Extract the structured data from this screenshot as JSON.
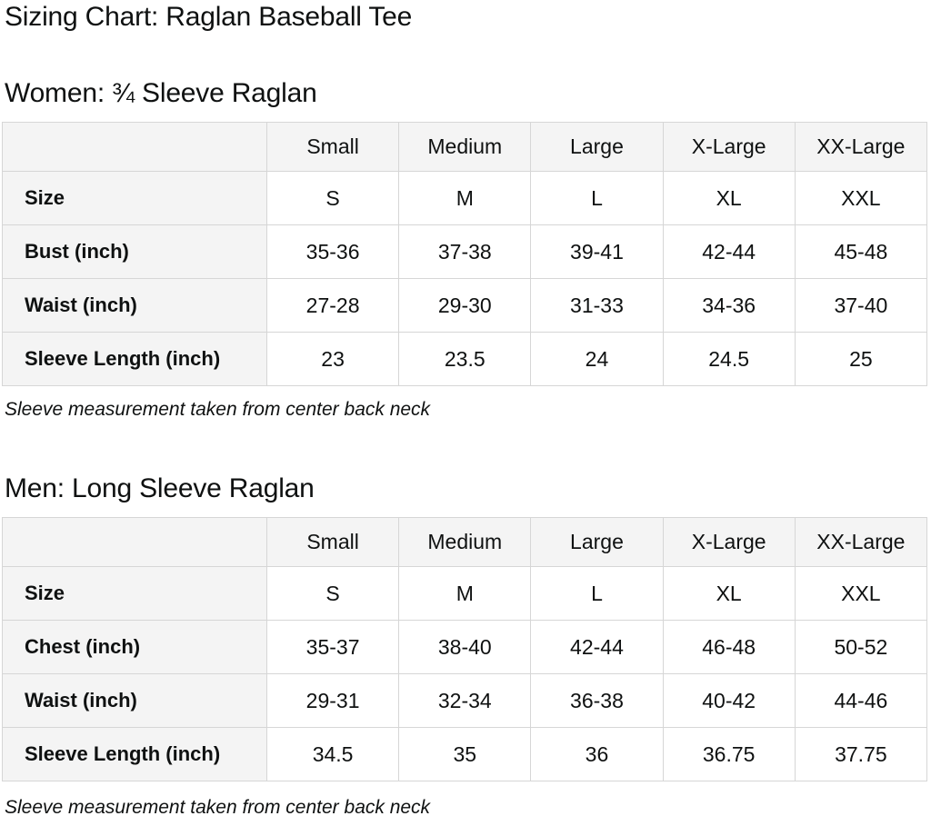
{
  "page": {
    "title": "Sizing Chart: Raglan Baseball Tee"
  },
  "colors": {
    "header_background": "#f4f4f4",
    "cell_background": "#ffffff",
    "border": "#d6d6d6",
    "text": "#0f1111"
  },
  "sections": [
    {
      "heading": "Women: ¾ Sleeve Raglan",
      "note": "Sleeve measurement taken from center back neck",
      "table": {
        "columns": [
          "",
          "Small",
          "Medium",
          "Large",
          "X-Large",
          "XX-Large"
        ],
        "rows": [
          {
            "label": "Size",
            "values": [
              "S",
              "M",
              "L",
              "XL",
              "XXL"
            ]
          },
          {
            "label": "Bust (inch)",
            "values": [
              "35-36",
              "37-38",
              "39-41",
              "42-44",
              "45-48"
            ]
          },
          {
            "label": "Waist (inch)",
            "values": [
              "27-28",
              "29-30",
              "31-33",
              "34-36",
              "37-40"
            ]
          },
          {
            "label": "Sleeve Length (inch)",
            "values": [
              "23",
              "23.5",
              "24",
              "24.5",
              "25"
            ]
          }
        ]
      }
    },
    {
      "heading": "Men: Long Sleeve Raglan",
      "note": "Sleeve measurement taken from center back neck",
      "table": {
        "columns": [
          "",
          "Small",
          "Medium",
          "Large",
          "X-Large",
          "XX-Large"
        ],
        "rows": [
          {
            "label": "Size",
            "values": [
              "S",
              "M",
              "L",
              "XL",
              "XXL"
            ]
          },
          {
            "label": "Chest (inch)",
            "values": [
              "35-37",
              "38-40",
              "42-44",
              "46-48",
              "50-52"
            ]
          },
          {
            "label": "Waist (inch)",
            "values": [
              "29-31",
              "32-34",
              "36-38",
              "40-42",
              "44-46"
            ]
          },
          {
            "label": "Sleeve Length (inch)",
            "values": [
              "34.5",
              "35",
              "36",
              "36.75",
              "37.75"
            ]
          }
        ]
      }
    }
  ]
}
